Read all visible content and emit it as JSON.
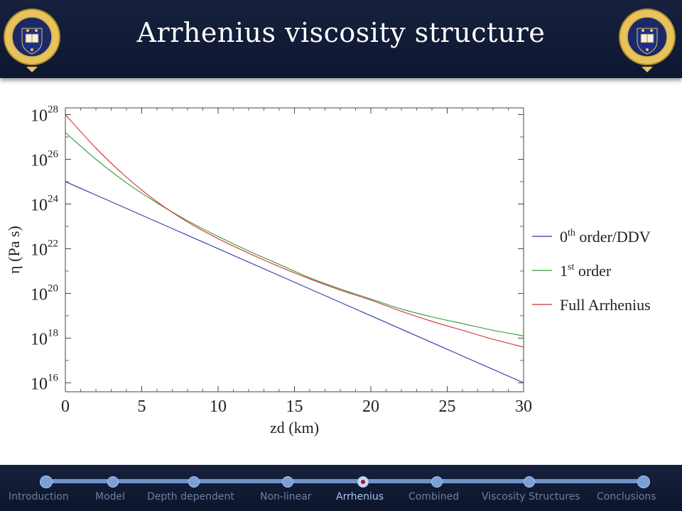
{
  "header": {
    "title": "Arrhenius viscosity structure"
  },
  "crest": {
    "motto": "DOMINUS ILLUMINATIO MEA",
    "ring_text": "UNIVERSITY OF OXFORD"
  },
  "nav": {
    "items": [
      {
        "label": "Introduction",
        "active": false
      },
      {
        "label": "Model",
        "active": false
      },
      {
        "label": "Depth dependent",
        "active": false
      },
      {
        "label": "Non-linear",
        "active": false
      },
      {
        "label": "Arrhenius",
        "active": true
      },
      {
        "label": "Combined",
        "active": false
      },
      {
        "label": "Viscosity Structures",
        "active": false
      },
      {
        "label": "Conclusions",
        "active": false
      }
    ]
  },
  "chart_data": {
    "type": "line",
    "xlabel": "zd (km)",
    "ylabel": "η (Pa s)",
    "xlim": [
      0,
      30
    ],
    "ylim_log10": [
      15.6,
      28.3
    ],
    "yscale": "log",
    "x_ticks": [
      0,
      5,
      10,
      15,
      20,
      25,
      30
    ],
    "y_tick_exponents": [
      16,
      18,
      20,
      22,
      24,
      26,
      28
    ],
    "legend_position": "right, outside plot",
    "series": [
      {
        "name": "0th order/DDV",
        "name_base": "0",
        "name_sup": "th",
        "name_rest": " order/DDV",
        "color": "#3333aa",
        "x": [
          0,
          30
        ],
        "log10_eta": [
          25.0,
          16.0
        ]
      },
      {
        "name": "1st order",
        "name_base": "1",
        "name_sup": "st",
        "name_rest": " order",
        "color": "#339933",
        "x": [
          0,
          2,
          4,
          6,
          8,
          10,
          12,
          14,
          16,
          18,
          20,
          22,
          24,
          26,
          28,
          30
        ],
        "log10_eta": [
          27.2,
          26.0,
          24.95,
          24.05,
          23.25,
          22.55,
          21.9,
          21.3,
          20.7,
          20.2,
          19.75,
          19.3,
          18.95,
          18.65,
          18.35,
          18.1
        ]
      },
      {
        "name": "Full Arrhenius",
        "name_base": "Full Arrhenius",
        "name_sup": "",
        "name_rest": "",
        "color": "#cc3333",
        "x": [
          0,
          2,
          4,
          6,
          8,
          10,
          12,
          14,
          16,
          18,
          20,
          22,
          24,
          26,
          28,
          30
        ],
        "log10_eta": [
          28.0,
          26.5,
          25.2,
          24.1,
          23.2,
          22.45,
          21.8,
          21.2,
          20.65,
          20.15,
          19.7,
          19.2,
          18.75,
          18.35,
          17.95,
          17.6
        ]
      }
    ]
  }
}
